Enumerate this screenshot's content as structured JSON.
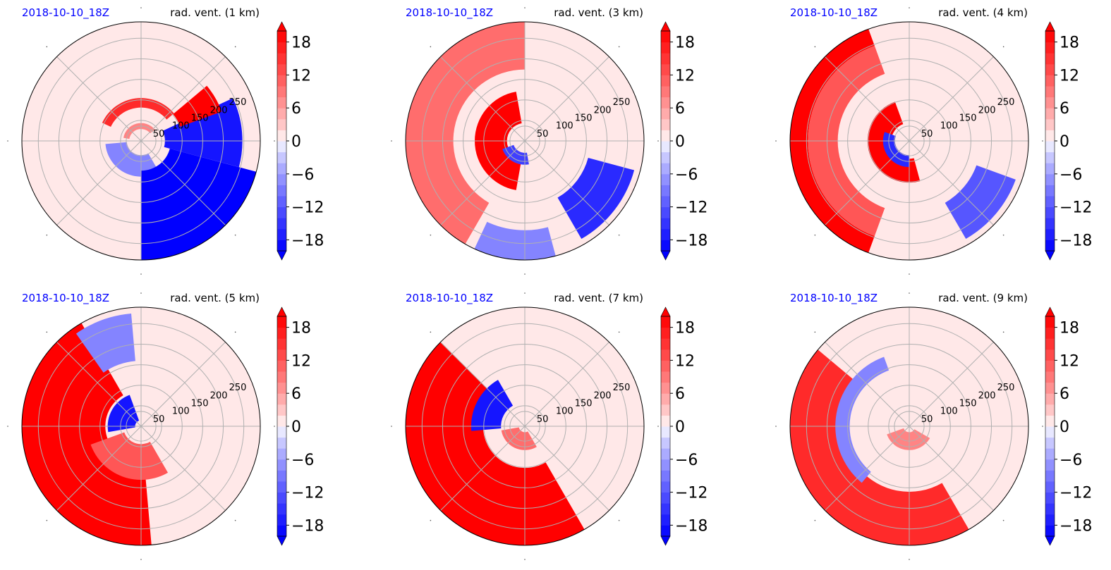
{
  "colors": {
    "date_label": "#0000ff",
    "strong_positive": "#ff0000",
    "strong_negative": "#0000ff",
    "neutral": "#ffffff",
    "grid": "#b0b0b0"
  },
  "chart_data": [
    {
      "type": "heatmap",
      "projection": "polar",
      "date": "2018-10-10_18Z",
      "title": "rad. vent. (1 km)",
      "radial_ticks": [
        50,
        100,
        150,
        200,
        250
      ],
      "colorbar": {
        "ticks": [
          "18",
          "12",
          "6",
          "0",
          "−6",
          "−12",
          "−18"
        ],
        "range": [
          -20,
          20
        ],
        "extend": "both"
      },
      "features": [
        {
          "kind": "ring",
          "value": 8,
          "r": [
            0.1,
            0.15
          ],
          "theta": [
            40,
            170
          ]
        },
        {
          "kind": "ring",
          "value": 16,
          "r": [
            0.28,
            0.36
          ],
          "theta": [
            40,
            155
          ]
        },
        {
          "kind": "ring",
          "value": -8,
          "r": [
            0.12,
            0.3
          ],
          "theta": [
            185,
            300
          ]
        },
        {
          "kind": "sector",
          "value": -20,
          "r": [
            0.25,
            1.0
          ],
          "theta": [
            270,
            345
          ]
        },
        {
          "kind": "sector",
          "value": -18,
          "r": [
            0.2,
            0.85
          ],
          "theta": [
            345,
            385
          ]
        },
        {
          "kind": "sector",
          "value": 20,
          "r": [
            0.35,
            0.72
          ],
          "theta": [
            20,
            40
          ]
        }
      ]
    },
    {
      "type": "heatmap",
      "projection": "polar",
      "date": "2018-10-10_18Z",
      "title": "rad. vent. (3 km)",
      "radial_ticks": [
        50,
        100,
        150,
        200,
        250
      ],
      "colorbar": {
        "ticks": [
          "18",
          "12",
          "6",
          "0",
          "−6",
          "−12",
          "−18"
        ],
        "range": [
          -20,
          20
        ],
        "extend": "both"
      },
      "features": [
        {
          "kind": "sector",
          "value": 10,
          "r": [
            0.6,
            1.0
          ],
          "theta": [
            90,
            240
          ]
        },
        {
          "kind": "ring",
          "value": 20,
          "r": [
            0.15,
            0.42
          ],
          "theta": [
            100,
            260
          ]
        },
        {
          "kind": "ring",
          "value": -14,
          "r": [
            0.1,
            0.2
          ],
          "theta": [
            200,
            280
          ]
        },
        {
          "kind": "sector",
          "value": -16,
          "r": [
            0.55,
            0.95
          ],
          "theta": [
            300,
            345
          ]
        },
        {
          "kind": "sector",
          "value": -8,
          "r": [
            0.75,
            1.0
          ],
          "theta": [
            245,
            285
          ]
        }
      ]
    },
    {
      "type": "heatmap",
      "projection": "polar",
      "date": "2018-10-10_18Z",
      "title": "rad. vent. (4 km)",
      "radial_ticks": [
        50,
        100,
        150,
        200,
        250
      ],
      "colorbar": {
        "ticks": [
          "18",
          "12",
          "6",
          "0",
          "−6",
          "−12",
          "−18"
        ],
        "range": [
          -20,
          20
        ],
        "extend": "both"
      },
      "features": [
        {
          "kind": "sector",
          "value": 20,
          "r": [
            0.85,
            1.0
          ],
          "theta": [
            110,
            250
          ]
        },
        {
          "kind": "sector",
          "value": 12,
          "r": [
            0.6,
            0.85
          ],
          "theta": [
            110,
            250
          ]
        },
        {
          "kind": "ring",
          "value": 20,
          "r": [
            0.15,
            0.35
          ],
          "theta": [
            110,
            285
          ]
        },
        {
          "kind": "ring",
          "value": -16,
          "r": [
            0.12,
            0.22
          ],
          "theta": [
            160,
            270
          ]
        },
        {
          "kind": "sector",
          "value": -12,
          "r": [
            0.6,
            0.95
          ],
          "theta": [
            300,
            340
          ]
        }
      ]
    },
    {
      "type": "heatmap",
      "projection": "polar",
      "date": "2018-10-10_18Z",
      "title": "rad. vent. (5 km)",
      "radial_ticks": [
        50,
        100,
        150,
        200,
        250
      ],
      "colorbar": {
        "ticks": [
          "18",
          "12",
          "6",
          "0",
          "−6",
          "−12",
          "−18"
        ],
        "range": [
          -20,
          20
        ],
        "extend": "both"
      },
      "features": [
        {
          "kind": "sector",
          "value": 20,
          "r": [
            0.3,
            1.0
          ],
          "theta": [
            120,
            275
          ]
        },
        {
          "kind": "sector",
          "value": 12,
          "r": [
            0.15,
            0.45
          ],
          "theta": [
            200,
            300
          ]
        },
        {
          "kind": "ring",
          "value": -18,
          "r": [
            0.05,
            0.28
          ],
          "theta": [
            110,
            190
          ]
        },
        {
          "kind": "sector",
          "value": -8,
          "r": [
            0.55,
            0.95
          ],
          "theta": [
            95,
            125
          ]
        }
      ]
    },
    {
      "type": "heatmap",
      "projection": "polar",
      "date": "2018-10-10_18Z",
      "title": "rad. vent. (7 km)",
      "radial_ticks": [
        50,
        100,
        150,
        200,
        250
      ],
      "colorbar": {
        "ticks": [
          "18",
          "12",
          "6",
          "0",
          "−6",
          "−12",
          "−18"
        ],
        "range": [
          -20,
          20
        ],
        "extend": "both"
      },
      "features": [
        {
          "kind": "sector",
          "value": 20,
          "r": [
            0.35,
            1.0
          ],
          "theta": [
            135,
            300
          ]
        },
        {
          "kind": "ring",
          "value": -18,
          "r": [
            0.2,
            0.45
          ],
          "theta": [
            120,
            185
          ]
        },
        {
          "kind": "ring",
          "value": 10,
          "r": [
            0.05,
            0.2
          ],
          "theta": [
            190,
            300
          ]
        }
      ]
    },
    {
      "type": "heatmap",
      "projection": "polar",
      "date": "2018-10-10_18Z",
      "title": "rad. vent. (9 km)",
      "radial_ticks": [
        50,
        100,
        150,
        200,
        250
      ],
      "colorbar": {
        "ticks": [
          "18",
          "12",
          "6",
          "0",
          "−6",
          "−12",
          "−18"
        ],
        "range": [
          -20,
          20
        ],
        "extend": "both"
      },
      "features": [
        {
          "kind": "sector",
          "value": 16,
          "r": [
            0.55,
            1.0
          ],
          "theta": [
            140,
            300
          ]
        },
        {
          "kind": "ring",
          "value": -8,
          "r": [
            0.5,
            0.62
          ],
          "theta": [
            110,
            230
          ]
        },
        {
          "kind": "ring",
          "value": 8,
          "r": [
            0.05,
            0.2
          ],
          "theta": [
            200,
            330
          ]
        }
      ]
    }
  ]
}
